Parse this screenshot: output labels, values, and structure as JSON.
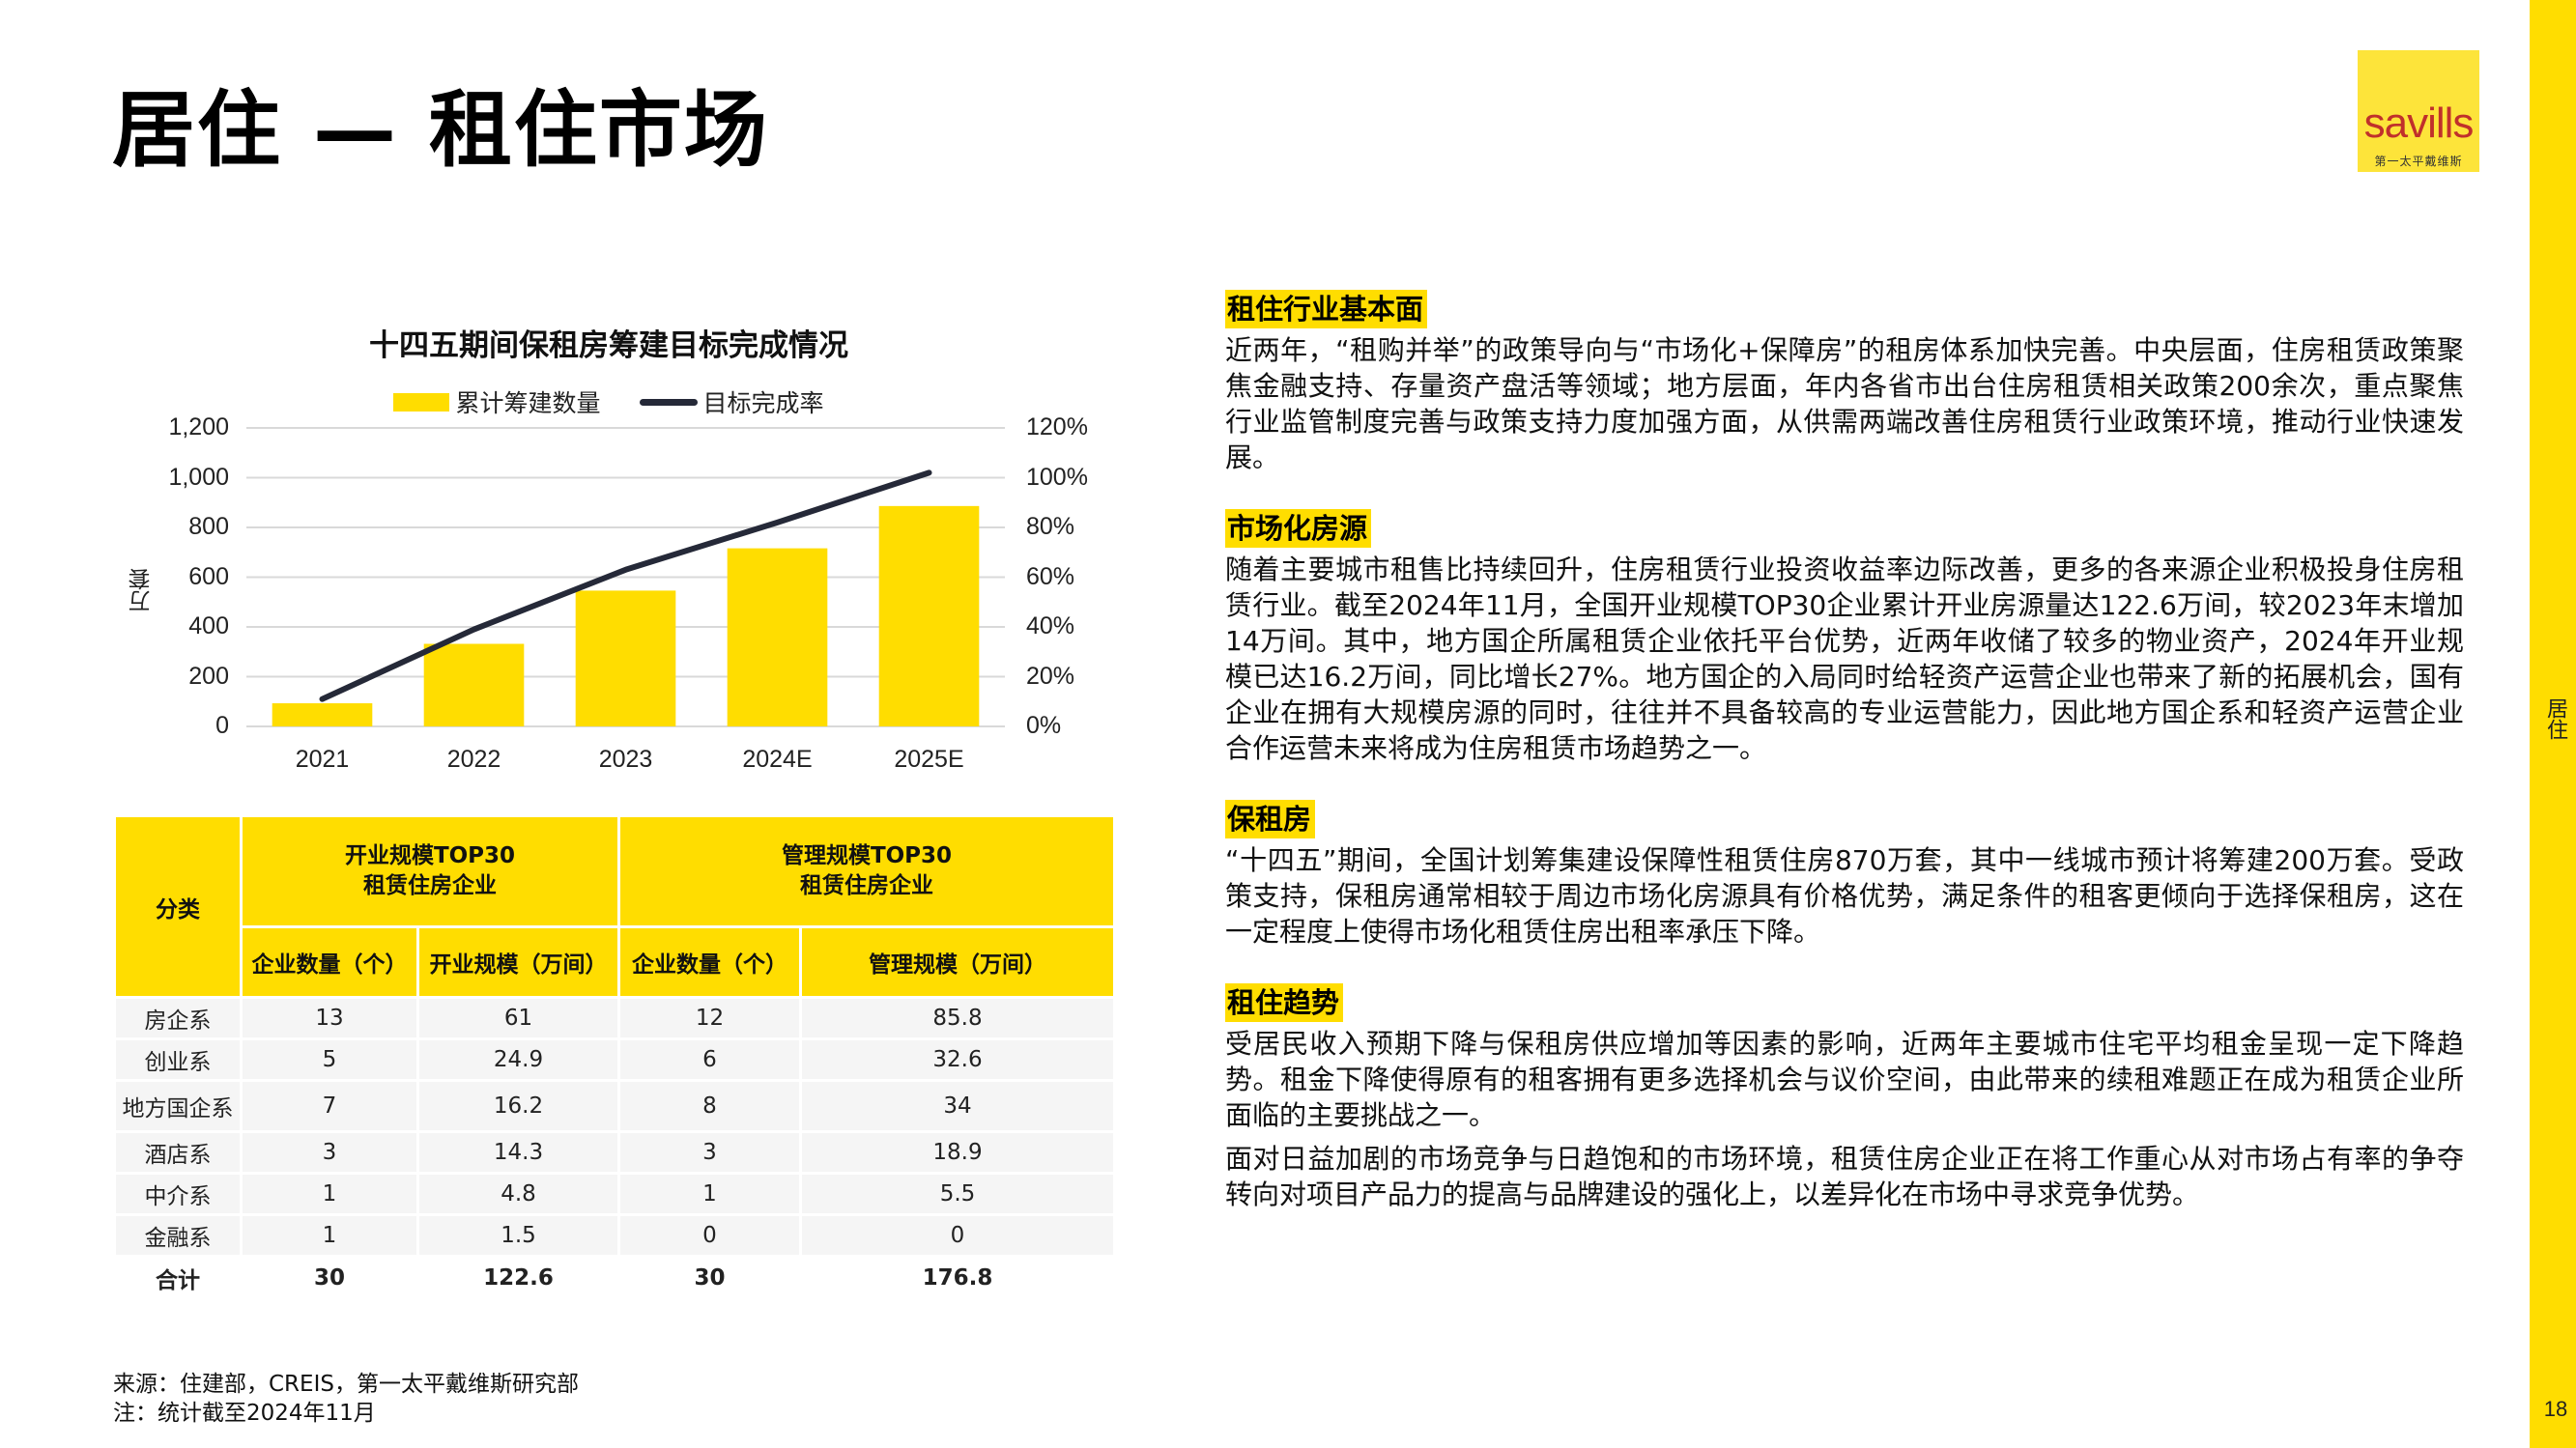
{
  "header": {
    "title": "居住 — 租住市场",
    "logo_brand": "savills",
    "logo_subtitle": "第一太平戴维斯"
  },
  "side": {
    "section_label": "居住",
    "page_number": "18"
  },
  "colors": {
    "accent_yellow": "#ffdd00",
    "line_dark": "#252938",
    "logo_red": "#c0302b",
    "grid": "#d9d9d9"
  },
  "chart": {
    "title": "十四五期间保租房筹建目标完成情况",
    "legend": {
      "bar": "累计筹建数量",
      "line": "目标完成率"
    },
    "y_unit": "万套",
    "y_left_ticks": [
      "0",
      "200",
      "400",
      "600",
      "800",
      "1,000",
      "1,200"
    ],
    "y_right_ticks": [
      "0%",
      "20%",
      "40%",
      "60%",
      "80%",
      "100%",
      "120%"
    ],
    "x_labels": [
      "2021",
      "2022",
      "2023",
      "2024E",
      "2025E"
    ]
  },
  "chart_data": {
    "type": "bar",
    "title": "十四五期间保租房筹建目标完成情况",
    "categories": [
      "2021",
      "2022",
      "2023",
      "2024E",
      "2025E"
    ],
    "series": [
      {
        "name": "累计筹建数量",
        "type": "bar",
        "axis": "left",
        "values": [
          93,
          332,
          546,
          716,
          886
        ]
      },
      {
        "name": "目标完成率",
        "type": "line",
        "axis": "right",
        "values": [
          0.11,
          0.39,
          0.63,
          0.82,
          1.02
        ]
      }
    ],
    "xlabel": "",
    "ylabel": "万套",
    "ylim": [
      0,
      1200
    ],
    "y2lim": [
      0,
      1.2
    ],
    "y2_format": "percent",
    "grid": true,
    "legend_position": "top"
  },
  "table": {
    "col_category": "分类",
    "group1": "开业规模TOP30\n租赁住房企业",
    "group1_line1": "开业规模TOP30",
    "group1_line2": "租赁住房企业",
    "group2_line1": "管理规模TOP30",
    "group2_line2": "租赁住房企业",
    "sub_headers": [
      "企业数量（个）",
      "开业规模（万间）",
      "企业数量（个）",
      "管理规模（万间）"
    ],
    "rows": [
      [
        "房企系",
        "13",
        "61",
        "12",
        "85.8"
      ],
      [
        "创业系",
        "5",
        "24.9",
        "6",
        "32.6"
      ],
      [
        "地方国企系",
        "7",
        "16.2",
        "8",
        "34"
      ],
      [
        "酒店系",
        "3",
        "14.3",
        "3",
        "18.9"
      ],
      [
        "中介系",
        "1",
        "4.8",
        "1",
        "5.5"
      ],
      [
        "金融系",
        "1",
        "1.5",
        "0",
        "0"
      ]
    ],
    "total": [
      "合计",
      "30",
      "122.6",
      "30",
      "176.8"
    ]
  },
  "footnote": {
    "source": "来源：住建部，CREIS，第一太平戴维斯研究部",
    "note": "注：统计截至2024年11月"
  },
  "sections": [
    {
      "heading": "租住行业基本面",
      "paragraphs": [
        "近两年，“租购并举”的政策导向与“市场化+保障房”的租房体系加快完善。中央层面，住房租赁政策聚焦金融支持、存量资产盘活等领域；地方层面，年内各省市出台住房租赁相关政策200余次，重点聚焦行业监管制度完善与政策支持力度加强方面，从供需两端改善住房租赁行业政策环境，推动行业快速发展。"
      ]
    },
    {
      "heading": "市场化房源",
      "paragraphs": [
        "随着主要城市租售比持续回升，住房租赁行业投资收益率边际改善，更多的各来源企业积极投身住房租赁行业。截至2024年11月，全国开业规模TOP30企业累计开业房源量达122.6万间，较2023年末增加14万间。其中，地方国企所属租赁企业依托平台优势，近两年收储了较多的物业资产，2024年开业规模已达16.2万间，同比增长27%。地方国企的入局同时给轻资产运营企业也带来了新的拓展机会，国有企业在拥有大规模房源的同时，往往并不具备较高的专业运营能力，因此地方国企系和轻资产运营企业合作运营未来将成为住房租赁市场趋势之一。"
      ]
    },
    {
      "heading": "保租房",
      "paragraphs": [
        "“十四五”期间，全国计划筹集建设保障性租赁住房870万套，其中一线城市预计将筹建200万套。受政策支持，保租房通常相较于周边市场化房源具有价格优势，满足条件的租客更倾向于选择保租房，这在一定程度上使得市场化租赁住房出租率承压下降。"
      ]
    },
    {
      "heading": "租住趋势",
      "paragraphs": [
        "受居民收入预期下降与保租房供应增加等因素的影响，近两年主要城市住宅平均租金呈现一定下降趋势。租金下降使得原有的租客拥有更多选择机会与议价空间，由此带来的续租难题正在成为租赁企业所面临的主要挑战之一。",
        "面对日益加剧的市场竞争与日趋饱和的市场环境，租赁住房企业正在将工作重心从对市场占有率的争夺转向对项目产品力的提高与品牌建设的强化上，以差异化在市场中寻求竞争优势。"
      ]
    }
  ]
}
